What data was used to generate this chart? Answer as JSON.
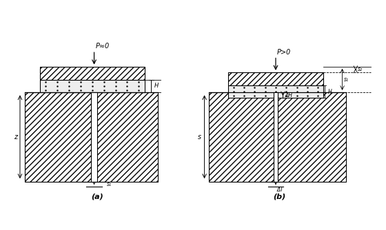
{
  "bg_color": "#ffffff",
  "label_a": "(a)",
  "label_b": "(b)",
  "label_Pa0": "P≈0",
  "label_Pb": "P>0",
  "label_H": "H",
  "label_z": "z",
  "label_s": "s",
  "label_DeltaH": "ΔH",
  "label_DeltaT": "ΔT"
}
